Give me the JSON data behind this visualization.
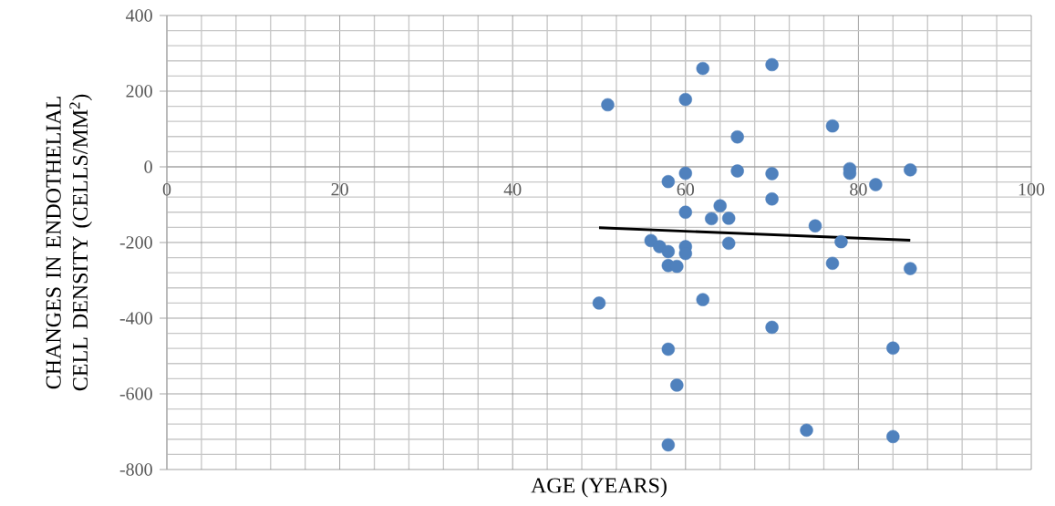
{
  "chart_data": {
    "type": "scatter",
    "xlabel": "AGE (YEARS)",
    "ylabel": "CHANGES IN ENDOTHELIAL CELL DENSITY (CELLS/MM$^{2}$)",
    "xlim": [
      0,
      100
    ],
    "xticks": [
      0,
      20,
      40,
      60,
      80,
      100
    ],
    "ylim": [
      -800,
      400
    ],
    "yticks": [
      -800,
      -600,
      -400,
      -200,
      0,
      200,
      400
    ],
    "grid": true,
    "series": [
      {
        "marker": "circle",
        "color": "#4f81bd",
        "x": [
          51,
          62,
          70,
          60,
          77,
          66,
          60,
          66,
          70,
          79,
          79,
          86,
          58,
          82,
          70,
          64,
          60,
          63,
          65,
          75,
          56,
          57,
          58,
          60,
          60,
          65,
          78,
          58,
          59,
          77,
          86,
          50,
          62,
          70,
          58,
          84,
          59,
          74,
          84,
          58
        ],
        "values": [
          164,
          260,
          270,
          178,
          108,
          79,
          -17,
          -11,
          -18,
          -5,
          -17,
          -8,
          -39,
          -47,
          -85,
          -103,
          -120,
          -137,
          -136,
          -156,
          -195,
          -211,
          -224,
          -211,
          -229,
          -202,
          -198,
          -261,
          -263,
          -255,
          -269,
          -360,
          -351,
          -424,
          -482,
          -479,
          -577,
          -696,
          -713,
          -735
        ]
      },
      {
        "type": "line",
        "marker": "none",
        "color": "#000000",
        "x": [
          50,
          86
        ],
        "values": [
          -161,
          -194
        ]
      }
    ]
  }
}
